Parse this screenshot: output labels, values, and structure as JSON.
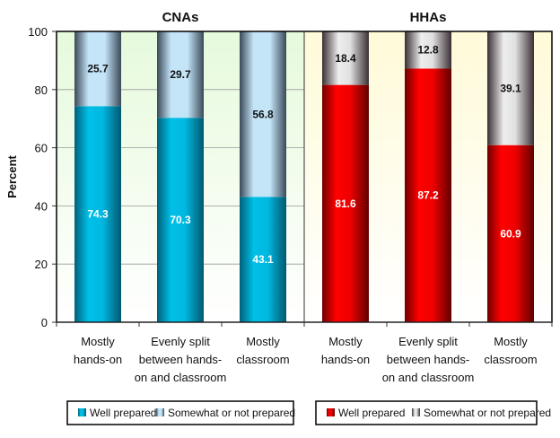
{
  "chart_data": [
    {
      "type": "bar",
      "stacked": true,
      "title": "CNAs",
      "ylabel": "Percent",
      "ylim": [
        0,
        100
      ],
      "yticks": [
        0,
        20,
        40,
        60,
        80,
        100
      ],
      "grid": true,
      "categories": [
        [
          "Mostly",
          "hands-on"
        ],
        [
          "Evenly split",
          "between hands-",
          "on and classroom"
        ],
        [
          "Mostly",
          "classroom"
        ]
      ],
      "series": [
        {
          "name": "Well prepared",
          "values": [
            74.3,
            70.3,
            43.1
          ],
          "color": "#00b8e0"
        },
        {
          "name": "Somewhat or not prepared",
          "values": [
            25.7,
            29.7,
            56.8
          ],
          "color": "#c4e4f8"
        }
      ],
      "background": "#e8fbe0",
      "legend": "bottom"
    },
    {
      "type": "bar",
      "stacked": true,
      "title": "HHAs",
      "ylim": [
        0,
        100
      ],
      "grid": true,
      "categories": [
        [
          "Mostly",
          "hands-on"
        ],
        [
          "Evenly split",
          "between hands-",
          "on and classroom"
        ],
        [
          "Mostly",
          "classroom"
        ]
      ],
      "series": [
        {
          "name": "Well prepared",
          "values": [
            81.6,
            87.2,
            60.9
          ],
          "color": "#ee0000"
        },
        {
          "name": "Somewhat or not prepared",
          "values": [
            18.4,
            12.8,
            39.1
          ],
          "color": "#e8e8e8"
        }
      ],
      "background": "#fffbe0",
      "legend": "bottom"
    }
  ]
}
